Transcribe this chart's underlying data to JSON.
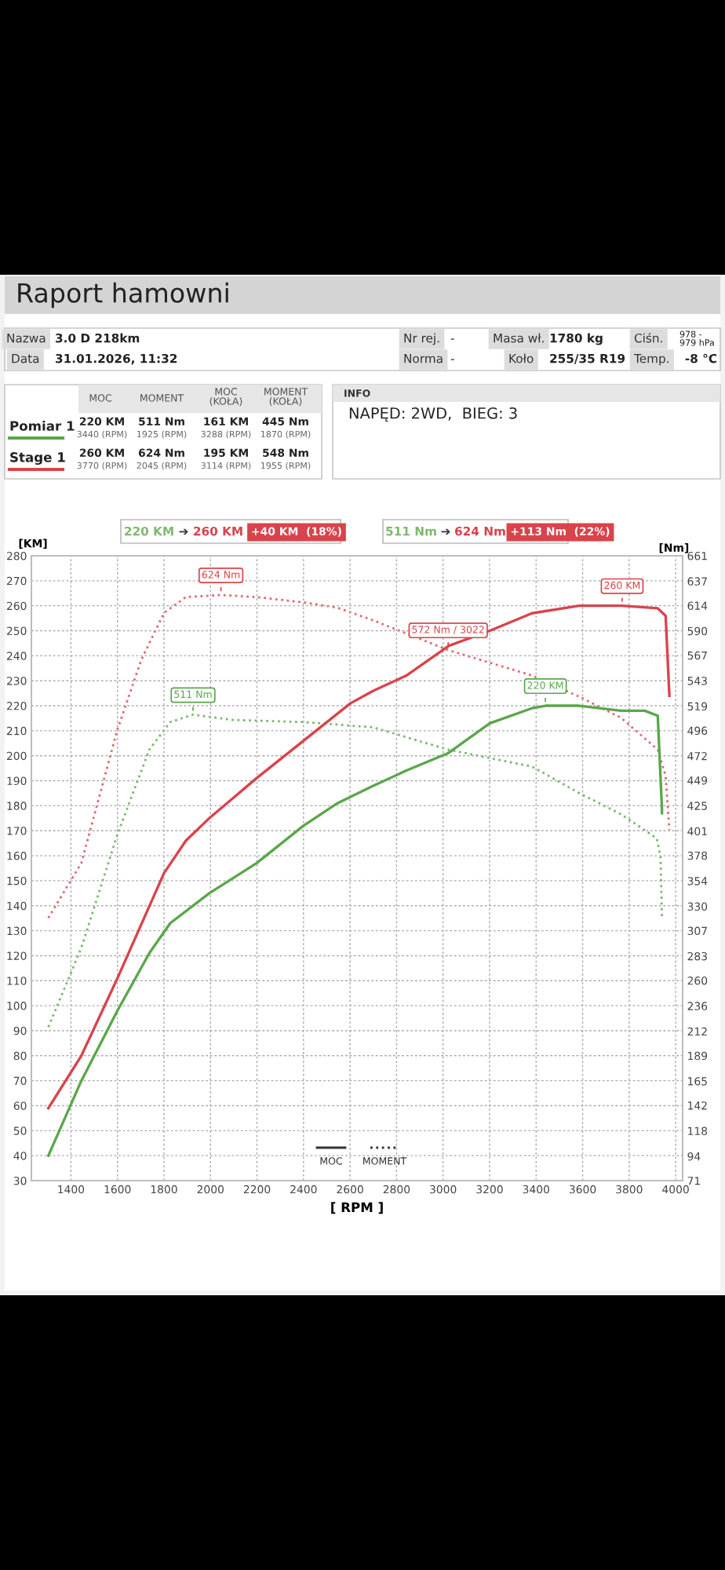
{
  "chart_data": {
    "type": "line",
    "title": "Raport hamowni",
    "xlabel": "[ RPM ]",
    "ylabel": "[KM]",
    "y2label": "[Nm]",
    "xlim": [
      1230,
      4030
    ],
    "xticks": [
      1400,
      1600,
      1800,
      2000,
      2200,
      2400,
      2600,
      2800,
      3000,
      3200,
      3400,
      3600,
      3800,
      4000
    ],
    "ylim": [
      30,
      280
    ],
    "yticks": [
      30,
      40,
      50,
      60,
      70,
      80,
      90,
      100,
      110,
      120,
      130,
      140,
      150,
      160,
      170,
      180,
      190,
      200,
      210,
      220,
      230,
      240,
      250,
      260,
      270,
      280
    ],
    "y2lim": [
      71,
      661
    ],
    "y2ticks": [
      71,
      94,
      118,
      142,
      165,
      189,
      212,
      236,
      260,
      283,
      307,
      330,
      354,
      378,
      401,
      425,
      449,
      472,
      496,
      519,
      543,
      567,
      590,
      614,
      637,
      661
    ],
    "grid": true,
    "series": [
      {
        "color": "#5aa64b",
        "line_style": "solid",
        "x": [
          1303,
          1445,
          1600,
          1737,
          1827,
          1995,
          2198,
          2400,
          2546,
          2700,
          2841,
          3021,
          3201,
          3382,
          3440,
          3585,
          3765,
          3867,
          3923,
          3941,
          3941
        ],
        "values": [
          40,
          70,
          98,
          121,
          133,
          145,
          157,
          172,
          181,
          188,
          194,
          201,
          213,
          219,
          220,
          220,
          218,
          218,
          216,
          179,
          177
        ]
      },
      {
        "color": "#d9434b",
        "line_style": "solid",
        "x": [
          1303,
          1445,
          1600,
          1800,
          1894,
          1995,
          2198,
          2400,
          2602,
          2700,
          2841,
          3025,
          3201,
          3382,
          3585,
          3770,
          3923,
          3957,
          3973
        ],
        "values": [
          59,
          80,
          111,
          153,
          166,
          175,
          191,
          206,
          221,
          226,
          232,
          244,
          250,
          257,
          260,
          260,
          259,
          256,
          224
        ]
      },
      {
        "color": "#5aa64b",
        "line_style": "dotted",
        "axis": "y2",
        "x": [
          1303,
          1445,
          1600,
          1737,
          1827,
          1925,
          2097,
          2400,
          2700,
          3021,
          3201,
          3382,
          3585,
          3765,
          3867,
          3919,
          3935,
          3941
        ],
        "values": [
          216,
          291,
          398,
          478,
          504,
          511,
          506,
          504,
          499,
          478,
          470,
          462,
          437,
          417,
          402,
          394,
          377,
          320
        ]
      },
      {
        "color": "#d9434b",
        "line_style": "dotted",
        "axis": "y2",
        "x": [
          1303,
          1445,
          1600,
          1703,
          1800,
          1894,
          2045,
          2198,
          2400,
          2546,
          2700,
          3022,
          3382,
          3585,
          3765,
          3923,
          3957,
          3973
        ],
        "values": [
          319,
          371,
          497,
          563,
          607,
          622,
          624,
          622,
          617,
          612,
          600,
          572,
          548,
          528,
          508,
          478,
          453,
          402
        ]
      }
    ],
    "annotations": [
      "Nazwa",
      "3.0 D 218km",
      "Nr rej.",
      "-",
      "Masa wł.",
      "1780 kg",
      "Ciśn.",
      "978 -\n979 hPa",
      "Data",
      "31.01.2026, 11:32",
      "Norma",
      "-",
      "Koło",
      "255/35 R19",
      "Temp.",
      "-8 °C",
      "MOC",
      "MOMENT",
      "MOC\n(KOŁA)",
      "MOMENT\n(KOŁA)",
      "Pomiar 1",
      "220 KM",
      "3440 (RPM)",
      "511 Nm",
      "1925 (RPM)",
      "161 KM",
      "3288 (RPM)",
      "445 Nm",
      "1870 (RPM)",
      "Stage 1",
      "260 KM",
      "3770 (RPM)",
      "624 Nm",
      "2045 (RPM)",
      "195 KM",
      "3114 (RPM)",
      "548 Nm",
      "1955 (RPM)",
      "INFO",
      "NAPĘD: 2WD,  BIEG: 3",
      "220 KM",
      "➔",
      "260 KM",
      "+40 KM  (18%)",
      "511 Nm",
      "➔",
      "624 Nm",
      "+113 Nm  (22%)",
      "MOC",
      "MOMENT",
      {
        "text": "624 Nm",
        "x": 2045,
        "y": 264.3
      },
      {
        "text": "511 Nm",
        "x": 1925,
        "y": 216.4
      },
      {
        "text": "572 Nm / 3022",
        "x": 3022,
        "y": 242.3
      },
      {
        "text": "260 KM",
        "x": 3770,
        "y": 260
      },
      {
        "text": "220 KM",
        "x": 3440,
        "y": 220
      }
    ]
  }
}
